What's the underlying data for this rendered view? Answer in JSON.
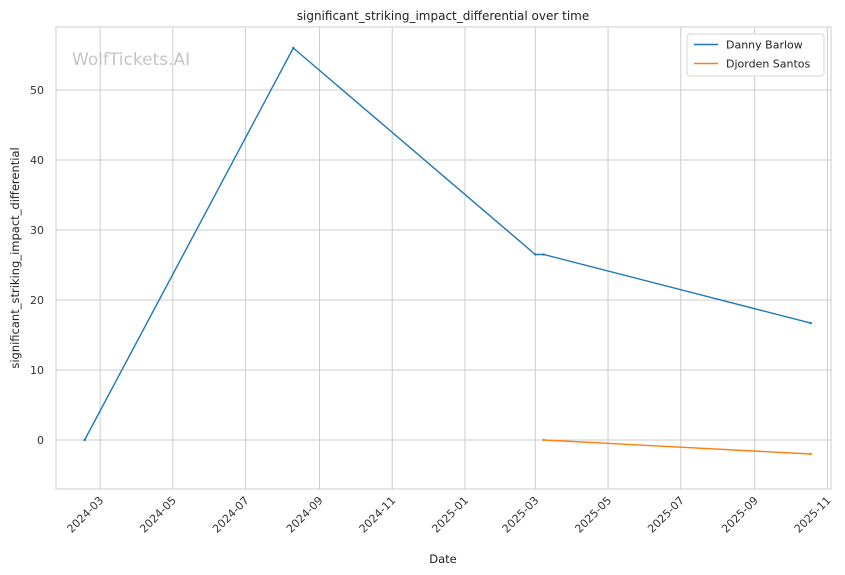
{
  "chart_data": {
    "type": "line",
    "title": "significant_striking_impact_differential over time",
    "xlabel": "Date",
    "ylabel": "significant_striking_impact_differential",
    "watermark": "WolfTickets.AI",
    "x_ticks": [
      "2024-03",
      "2024-05",
      "2024-07",
      "2024-09",
      "2024-11",
      "2025-01",
      "2025-03",
      "2025-05",
      "2025-07",
      "2025-09",
      "2025-11"
    ],
    "y_ticks": [
      0,
      10,
      20,
      30,
      40,
      50
    ],
    "xlim": [
      "2024-01-24",
      "2025-11-04"
    ],
    "ylim": [
      -7,
      59
    ],
    "grid": true,
    "legend_position": "top-right",
    "series": [
      {
        "name": "Danny Barlow",
        "color": "#1f77b4",
        "points": [
          {
            "x": "2024-02-17",
            "y": 0
          },
          {
            "x": "2024-08-10",
            "y": 56
          },
          {
            "x": "2025-03-01",
            "y": 26.5
          },
          {
            "x": "2025-03-08",
            "y": 26.5
          },
          {
            "x": "2025-10-18",
            "y": 16.7
          }
        ]
      },
      {
        "name": "Djorden Santos",
        "color": "#ff7f0e",
        "points": [
          {
            "x": "2025-03-08",
            "y": 0
          },
          {
            "x": "2025-10-18",
            "y": -2
          }
        ]
      }
    ]
  }
}
